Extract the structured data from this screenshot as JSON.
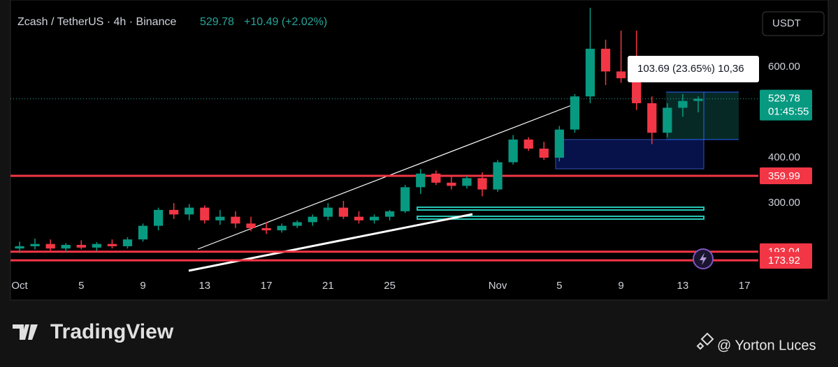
{
  "chart_data": {
    "type": "candlestick",
    "title": "Zcash / TetherUS · 4h · Binance",
    "last_price": 529.78,
    "change": "+10.49 (+2.02%)",
    "currency": "USDT",
    "countdown": "01:45:55",
    "annotation": "103.69 (23.65%) 10,36",
    "x": [
      1,
      2,
      3,
      4,
      5,
      6,
      7,
      8,
      9,
      10,
      11,
      12,
      13,
      14,
      15,
      16,
      17,
      18,
      19,
      20,
      21,
      22,
      23,
      24,
      25,
      26,
      27,
      28,
      29,
      30,
      31,
      32,
      33,
      34,
      35,
      36,
      37,
      38,
      39,
      40,
      41,
      42,
      43,
      44,
      45
    ],
    "open": [
      200,
      205,
      210,
      200,
      208,
      202,
      210,
      205,
      220,
      250,
      285,
      275,
      290,
      262,
      270,
      255,
      245,
      240,
      250,
      258,
      270,
      290,
      270,
      262,
      270,
      282,
      335,
      365,
      345,
      338,
      355,
      330,
      390,
      440,
      420,
      400,
      462,
      535,
      640,
      590,
      575,
      520,
      455,
      510,
      525
    ],
    "high": [
      215,
      222,
      220,
      212,
      218,
      214,
      220,
      225,
      255,
      290,
      300,
      298,
      295,
      285,
      282,
      270,
      258,
      255,
      262,
      275,
      300,
      305,
      282,
      275,
      285,
      340,
      375,
      372,
      358,
      360,
      368,
      395,
      450,
      445,
      435,
      470,
      540,
      730,
      660,
      680,
      680,
      535,
      520,
      540,
      535
    ],
    "low": [
      190,
      198,
      195,
      192,
      198,
      195,
      200,
      200,
      215,
      240,
      265,
      262,
      255,
      252,
      245,
      238,
      232,
      235,
      245,
      250,
      262,
      265,
      255,
      255,
      262,
      278,
      320,
      340,
      330,
      332,
      315,
      325,
      385,
      415,
      395,
      392,
      455,
      520,
      560,
      565,
      505,
      430,
      445,
      490,
      500
    ],
    "close": [
      205,
      210,
      200,
      208,
      202,
      210,
      205,
      220,
      250,
      285,
      275,
      290,
      262,
      270,
      255,
      245,
      240,
      250,
      258,
      270,
      290,
      270,
      262,
      270,
      282,
      335,
      365,
      345,
      338,
      355,
      330,
      390,
      440,
      420,
      400,
      462,
      535,
      640,
      590,
      575,
      520,
      455,
      510,
      525,
      529.78
    ],
    "up_color": "#089981",
    "down_color": "#f23645",
    "xlim": [
      0.41,
      48.9
    ],
    "xticks": [
      {
        "value": 1,
        "label": "Oct"
      },
      5,
      9,
      13,
      17,
      21,
      25,
      {
        "value": 32,
        "label": "Nov"
      },
      {
        "value": 36,
        "label": "5"
      },
      {
        "value": 40,
        "label": "9"
      },
      {
        "value": 44,
        "label": "13"
      },
      {
        "value": 48,
        "label": "17"
      }
    ],
    "ylim": [
      148,
      732
    ],
    "yticks": [
      {
        "value": 300,
        "label": "300.00"
      },
      {
        "value": 400,
        "label": "400.00"
      },
      {
        "value": 600,
        "label": "600.00"
      }
    ],
    "price_levels": [
      359.99,
      193.04,
      173.92
    ],
    "level_color": "#f23645"
  },
  "brand": "TradingView",
  "credit": "@ Yorton Luces"
}
